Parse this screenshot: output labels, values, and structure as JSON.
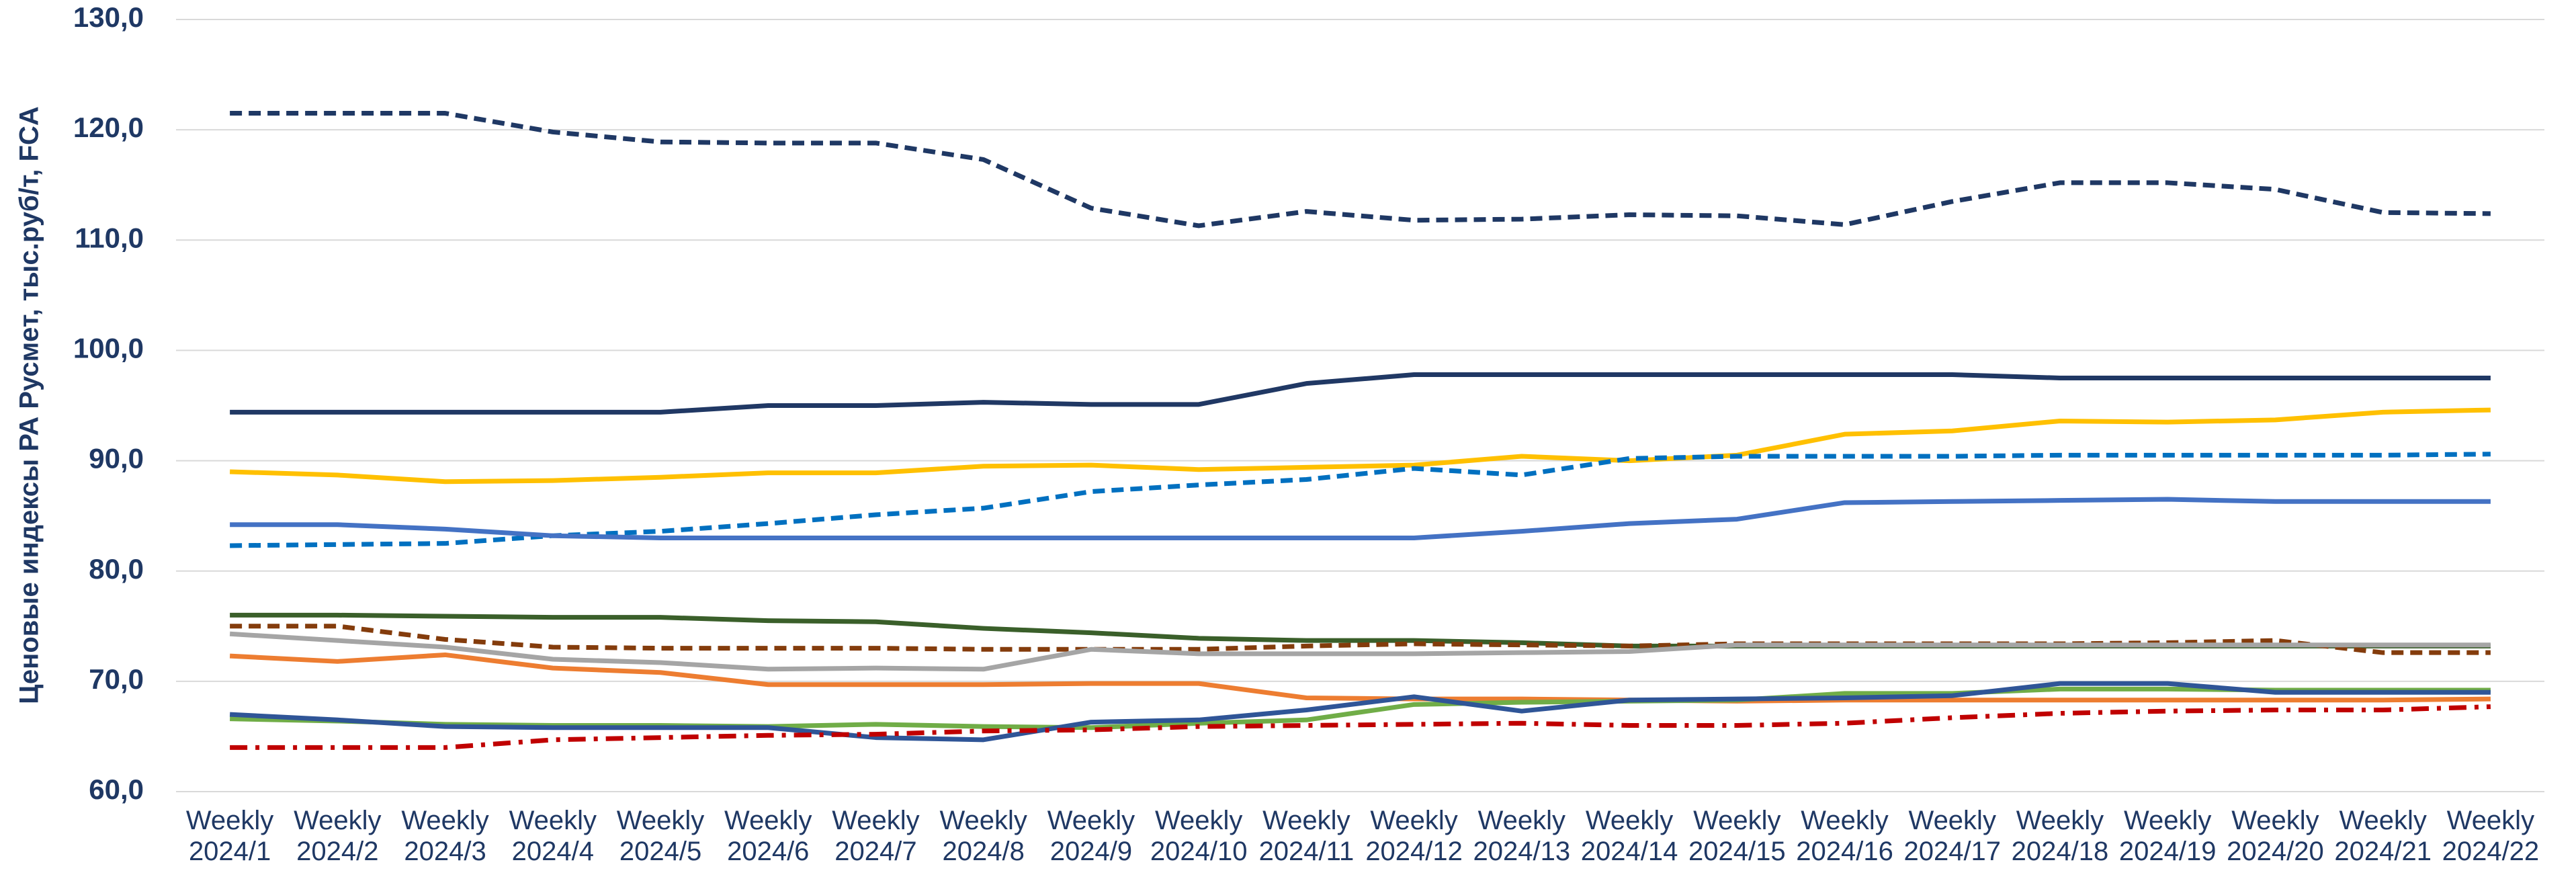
{
  "chart_data": {
    "type": "line",
    "y_label": "Ценовые индексы РА Русмет, тыс.руб/т, FCA",
    "categories": [
      "Weekly 2024/1",
      "Weekly 2024/2",
      "Weekly 2024/3",
      "Weekly 2024/4",
      "Weekly 2024/5",
      "Weekly 2024/6",
      "Weekly 2024/7",
      "Weekly 2024/8",
      "Weekly 2024/9",
      "Weekly 2024/10",
      "Weekly 2024/11",
      "Weekly 2024/12",
      "Weekly 2024/13",
      "Weekly 2024/14",
      "Weekly 2024/15",
      "Weekly 2024/16",
      "Weekly 2024/17",
      "Weekly 2024/18",
      "Weekly 2024/19",
      "Weekly 2024/20",
      "Weekly 2024/21",
      "Weekly 2024/22"
    ],
    "ylim": [
      60,
      130
    ],
    "yticks": [
      {
        "value": 60,
        "label": "60,0"
      },
      {
        "value": 70,
        "label": "70,0"
      },
      {
        "value": 80,
        "label": "80,0"
      },
      {
        "value": 90,
        "label": "90,0"
      },
      {
        "value": 100,
        "label": "100,0"
      },
      {
        "value": 110,
        "label": "110,0"
      },
      {
        "value": 120,
        "label": "120,0"
      },
      {
        "value": 130,
        "label": "130,0"
      }
    ],
    "grid": true,
    "series": [
      {
        "color": "#1f3864",
        "dash": "dashed",
        "values": [
          121.5,
          121.5,
          121.5,
          119.8,
          118.9,
          118.8,
          118.8,
          117.3,
          112.9,
          111.3,
          112.6,
          111.8,
          111.9,
          112.3,
          112.2,
          111.4,
          113.5,
          115.2,
          115.2,
          114.6,
          112.5,
          112.4
        ]
      },
      {
        "color": "#203864",
        "dash": "solid",
        "values": [
          94.4,
          94.4,
          94.4,
          94.4,
          94.4,
          95,
          95,
          95.3,
          95.1,
          95.1,
          97,
          97.8,
          97.8,
          97.8,
          97.8,
          97.8,
          97.8,
          97.5,
          97.5,
          97.5,
          97.5,
          97.5
        ]
      },
      {
        "color": "#ffc000",
        "dash": "solid",
        "values": [
          89,
          88.7,
          88.1,
          88.2,
          88.5,
          88.9,
          88.9,
          89.5,
          89.6,
          89.2,
          89.4,
          89.6,
          90.4,
          90,
          90.5,
          92.4,
          92.7,
          93.6,
          93.5,
          93.7,
          94.4,
          94.6
        ]
      },
      {
        "color": "#0070c0",
        "dash": "dashed",
        "values": [
          82.3,
          82.4,
          82.5,
          83.2,
          83.6,
          84.3,
          85.1,
          85.7,
          87.2,
          87.8,
          88.3,
          89.3,
          88.7,
          90.2,
          90.4,
          90.4,
          90.4,
          90.5,
          90.5,
          90.5,
          90.5,
          90.6
        ]
      },
      {
        "color": "#4472c4",
        "dash": "solid",
        "values": [
          84.2,
          84.2,
          83.8,
          83.2,
          83,
          83,
          83,
          83,
          83,
          83,
          83,
          83,
          83.6,
          84.3,
          84.7,
          86.2,
          86.3,
          86.4,
          86.5,
          86.3,
          86.3,
          86.3
        ]
      },
      {
        "color": "#3a5f2a",
        "dash": "solid",
        "values": [
          76,
          76,
          75.9,
          75.8,
          75.8,
          75.5,
          75.4,
          74.8,
          74.4,
          73.9,
          73.7,
          73.7,
          73.5,
          73.2,
          73.2,
          73.2,
          73.2,
          73.2,
          73.2,
          73.2,
          73.2,
          73.2
        ]
      },
      {
        "color": "#843c0c",
        "dash": "dashed",
        "values": [
          75,
          75,
          73.8,
          73.1,
          73,
          73,
          73,
          72.9,
          72.9,
          72.9,
          73.2,
          73.4,
          73.3,
          73.2,
          73.4,
          73.4,
          73.4,
          73.4,
          73.5,
          73.7,
          72.6,
          72.6
        ]
      },
      {
        "color": "#a5a5a5",
        "dash": "solid",
        "values": [
          74.3,
          73.7,
          73.1,
          72,
          71.7,
          71.1,
          71.2,
          71.1,
          72.9,
          72.5,
          72.5,
          72.5,
          72.6,
          72.7,
          73.3,
          73.3,
          73.3,
          73.3,
          73.3,
          73.3,
          73.3,
          73.3
        ]
      },
      {
        "color": "#ed7d31",
        "dash": "solid",
        "values": [
          72.3,
          71.8,
          72.4,
          71.2,
          70.8,
          69.7,
          69.7,
          69.7,
          69.8,
          69.8,
          68.5,
          68.4,
          68.4,
          68.3,
          68.2,
          68.3,
          68.3,
          68.3,
          68.3,
          68.3,
          68.3,
          68.4
        ]
      },
      {
        "color": "#70ad47",
        "dash": "solid",
        "values": [
          66.6,
          66.4,
          66.1,
          66,
          66,
          65.9,
          66.1,
          65.9,
          65.8,
          66.2,
          66.5,
          67.9,
          68.1,
          68.2,
          68.3,
          68.9,
          68.9,
          69.3,
          69.3,
          69.2,
          69.2,
          69.2
        ]
      },
      {
        "color": "#2f5597",
        "dash": "solid",
        "values": [
          67,
          66.5,
          65.9,
          65.8,
          65.8,
          65.8,
          64.9,
          64.7,
          66.3,
          66.5,
          67.4,
          68.6,
          67.3,
          68.3,
          68.4,
          68.5,
          68.7,
          69.8,
          69.8,
          69,
          69,
          69
        ]
      },
      {
        "color": "#c00000",
        "dash": "dashdot",
        "values": [
          64,
          64,
          64,
          64.7,
          64.9,
          65.1,
          65.2,
          65.5,
          65.6,
          65.9,
          66,
          66.1,
          66.2,
          66,
          66,
          66.2,
          66.7,
          67.1,
          67.3,
          67.4,
          67.4,
          67.7
        ]
      }
    ]
  }
}
